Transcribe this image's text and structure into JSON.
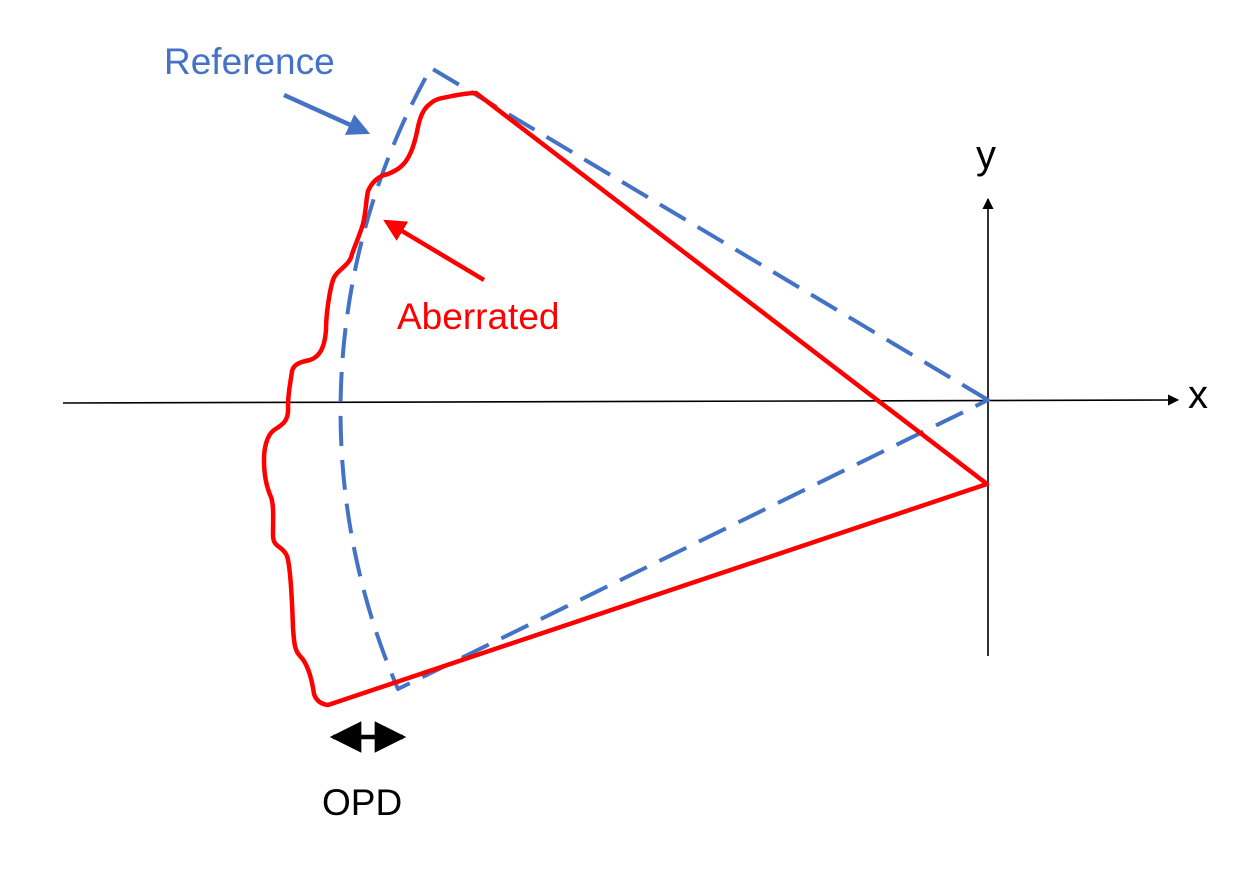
{
  "labels": {
    "reference": "Reference",
    "aberrated": "Aberrated",
    "x_axis": "x",
    "y_axis": "y",
    "opd": "OPD"
  },
  "colors": {
    "reference": "#4472C4",
    "aberrated": "#FF0000",
    "axes": "#000000",
    "background": "#FFFFFF"
  }
}
